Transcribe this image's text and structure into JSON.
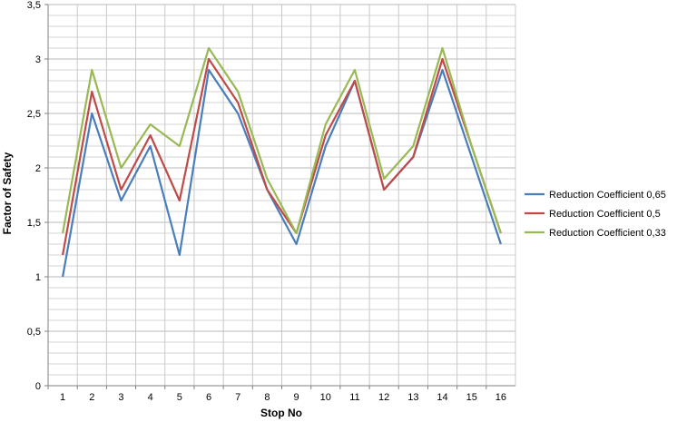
{
  "chart_data": {
    "type": "line",
    "title": "",
    "xlabel": "Stop No",
    "ylabel": "Factor of Safety",
    "categories": [
      "1",
      "2",
      "3",
      "4",
      "5",
      "6",
      "7",
      "8",
      "9",
      "10",
      "11",
      "12",
      "13",
      "14",
      "15",
      "16"
    ],
    "ylim": [
      0,
      3.5
    ],
    "y_ticks": [
      "0",
      "0,5",
      "1",
      "1,5",
      "2",
      "2,5",
      "3",
      "3,5"
    ],
    "grid": true,
    "legend_position": "right",
    "series": [
      {
        "name": "Reduction Coefficient 0,65",
        "color": "#4a7ebb",
        "values": [
          1.0,
          2.5,
          1.7,
          2.2,
          1.2,
          2.9,
          2.5,
          1.8,
          1.3,
          2.2,
          2.8,
          1.8,
          2.1,
          2.9,
          2.1,
          1.3
        ]
      },
      {
        "name": "Reduction Coefficient 0,5",
        "color": "#be4b48",
        "values": [
          1.2,
          2.7,
          1.8,
          2.3,
          1.7,
          3.0,
          2.6,
          1.8,
          1.4,
          2.3,
          2.8,
          1.8,
          2.1,
          3.0,
          2.2,
          1.4
        ]
      },
      {
        "name": "Reduction Coefficient 0,33",
        "color": "#98b954",
        "values": [
          1.4,
          2.9,
          2.0,
          2.4,
          2.2,
          3.1,
          2.7,
          1.9,
          1.4,
          2.4,
          2.9,
          1.9,
          2.2,
          3.1,
          2.2,
          1.4
        ]
      }
    ]
  }
}
